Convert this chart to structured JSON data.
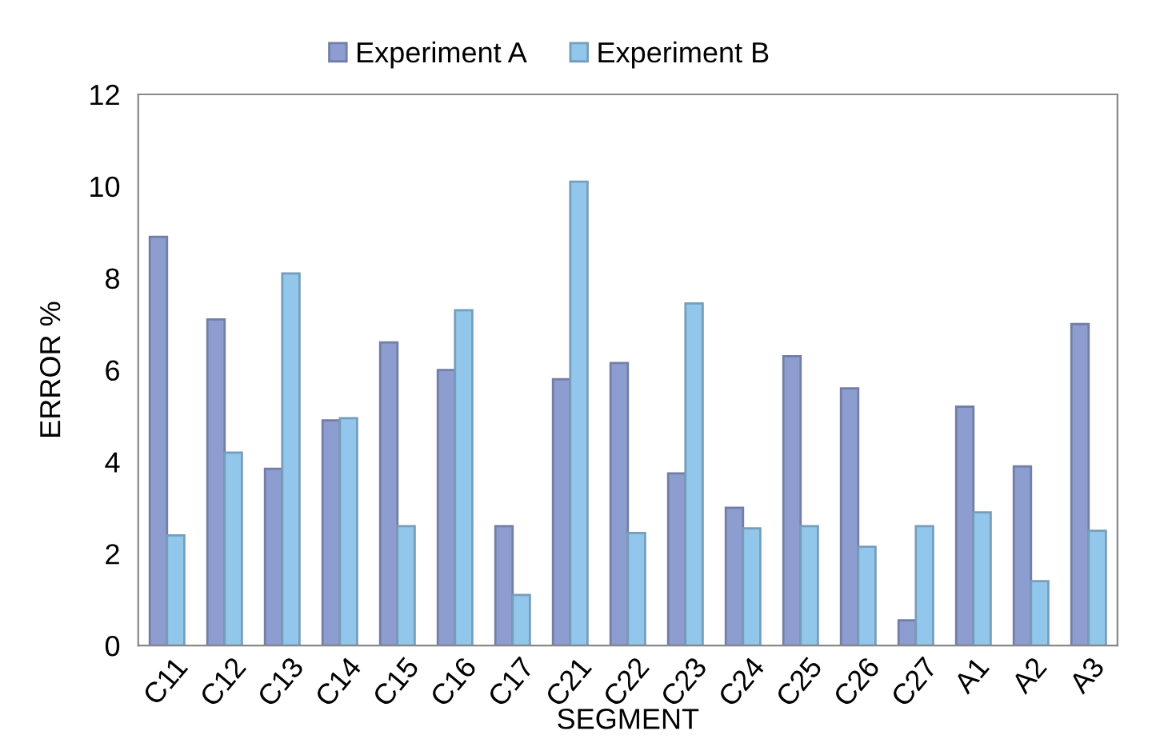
{
  "chart_data": {
    "type": "bar",
    "xlabel": "SEGMENT",
    "ylabel": "ERROR %",
    "categories": [
      "C11",
      "C12",
      "C13",
      "C14",
      "C15",
      "C16",
      "C17",
      "C21",
      "C22",
      "C23",
      "C24",
      "C25",
      "C26",
      "C27",
      "A1",
      "A2",
      "A3"
    ],
    "series": [
      {
        "name": "Experiment A",
        "color": "#8e9dd0",
        "values": [
          8.9,
          7.1,
          3.85,
          4.9,
          6.6,
          6.0,
          2.6,
          5.8,
          6.15,
          3.75,
          3.0,
          6.3,
          5.6,
          0.55,
          5.2,
          3.9,
          7.0
        ]
      },
      {
        "name": "Experiment B",
        "color": "#92c6ea",
        "values": [
          2.4,
          4.2,
          8.1,
          4.95,
          2.6,
          7.3,
          1.1,
          10.1,
          2.45,
          7.45,
          2.55,
          2.6,
          2.15,
          2.6,
          2.9,
          1.4,
          2.5
        ]
      }
    ],
    "ylim": [
      0,
      12
    ],
    "yticks": [
      0,
      2,
      4,
      6,
      8,
      10,
      12
    ],
    "grid": false,
    "legend": "top"
  }
}
